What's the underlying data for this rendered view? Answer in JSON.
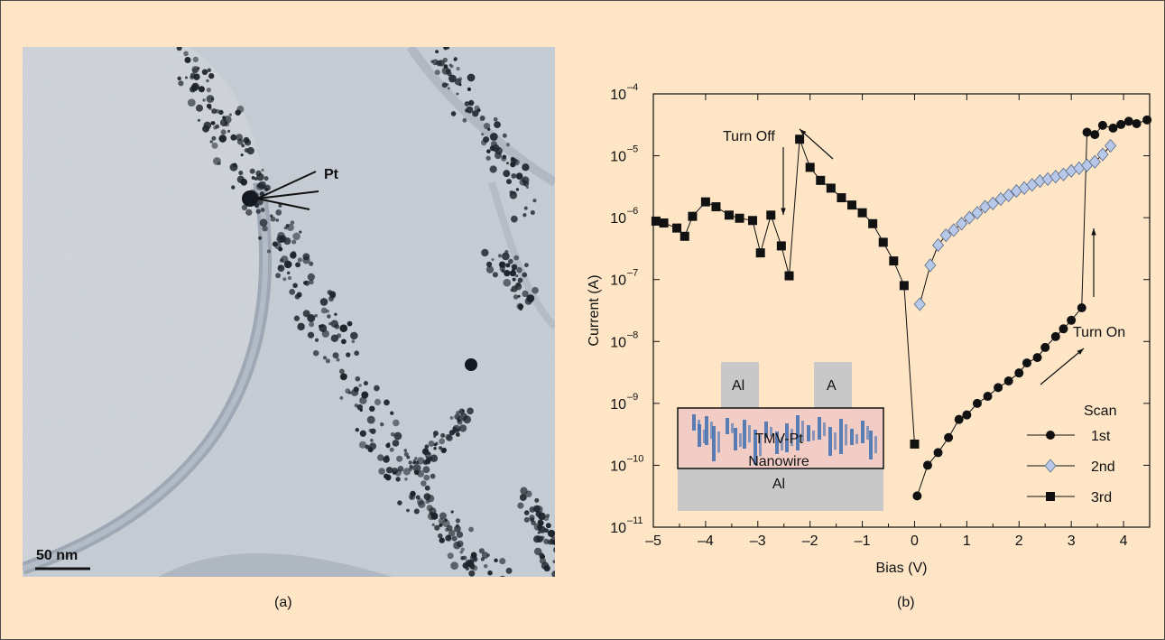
{
  "panel_a": {
    "caption": "(a)",
    "particle_label": "Pt",
    "scale_bar_label": "50 nm"
  },
  "panel_b": {
    "caption": "(b)"
  },
  "colors": {
    "figure_background": "#fde5c6",
    "diamond_fill": "#b7c8e8",
    "marker_dark": "#111111",
    "inset_gray": "#c8c8c8",
    "inset_pink": "#f2cdc6",
    "inset_blue": "#3d6fb0"
  },
  "chart_data": {
    "type": "scatter",
    "xlabel": "Bias (V)",
    "ylabel": "Current (A)",
    "xlim": [
      -5,
      4.5
    ],
    "ylim": [
      1e-11,
      0.0001
    ],
    "yscale": "log",
    "x_ticks": [
      -5,
      -4,
      -3,
      -2,
      -1,
      0,
      1,
      2,
      3,
      4
    ],
    "x_tick_labels": [
      "–5",
      "–4",
      "–3",
      "–2",
      "–1",
      "0",
      "1",
      "2",
      "3",
      "4"
    ],
    "y_tick_exponents": [
      -11,
      -10,
      -9,
      -8,
      -7,
      -6,
      -5,
      -4
    ],
    "y_tick_base": "10",
    "legend_title": "Scan",
    "legend_position": "bottom-right",
    "series": [
      {
        "name": "1st",
        "marker": "circle",
        "points": [
          [
            0.05,
            3.2e-11
          ],
          [
            0.25,
            1e-10
          ],
          [
            0.45,
            1.6e-10
          ],
          [
            0.65,
            2.8e-10
          ],
          [
            0.85,
            5.5e-10
          ],
          [
            1.0,
            6.5e-10
          ],
          [
            1.2,
            1e-09
          ],
          [
            1.4,
            1.3e-09
          ],
          [
            1.6,
            1.8e-09
          ],
          [
            1.8,
            2.3e-09
          ],
          [
            2.0,
            3.1e-09
          ],
          [
            2.15,
            4.5e-09
          ],
          [
            2.35,
            5.5e-09
          ],
          [
            2.5,
            8e-09
          ],
          [
            2.7,
            1.2e-08
          ],
          [
            2.85,
            1.6e-08
          ],
          [
            3.0,
            2.2e-08
          ],
          [
            3.2,
            3.5e-08
          ],
          [
            3.3,
            2.4e-05
          ],
          [
            3.45,
            2.2e-05
          ],
          [
            3.6,
            3.1e-05
          ],
          [
            3.8,
            2.8e-05
          ],
          [
            3.95,
            3.2e-05
          ],
          [
            4.1,
            3.6e-05
          ],
          [
            4.25,
            3.3e-05
          ],
          [
            4.45,
            3.8e-05
          ]
        ]
      },
      {
        "name": "2nd",
        "marker": "diamond",
        "points": [
          [
            0.1,
            4e-08
          ],
          [
            0.3,
            1.7e-07
          ],
          [
            0.45,
            3.6e-07
          ],
          [
            0.6,
            5.2e-07
          ],
          [
            0.75,
            6.3e-07
          ],
          [
            0.9,
            8e-07
          ],
          [
            1.05,
            1e-06
          ],
          [
            1.2,
            1.2e-06
          ],
          [
            1.35,
            1.5e-06
          ],
          [
            1.5,
            1.7e-06
          ],
          [
            1.65,
            2e-06
          ],
          [
            1.8,
            2.3e-06
          ],
          [
            1.95,
            2.7e-06
          ],
          [
            2.1,
            3e-06
          ],
          [
            2.25,
            3.4e-06
          ],
          [
            2.4,
            3.9e-06
          ],
          [
            2.55,
            4.2e-06
          ],
          [
            2.7,
            4.6e-06
          ],
          [
            2.85,
            5e-06
          ],
          [
            3.0,
            5.7e-06
          ],
          [
            3.15,
            6.3e-06
          ],
          [
            3.3,
            7e-06
          ],
          [
            3.45,
            8e-06
          ],
          [
            3.6,
            1.05e-05
          ],
          [
            3.75,
            1.45e-05
          ]
        ]
      },
      {
        "name": "3rd",
        "marker": "square",
        "points": [
          [
            -4.95,
            8.8e-07
          ],
          [
            -4.8,
            8.2e-07
          ],
          [
            -4.55,
            6.8e-07
          ],
          [
            -4.4,
            5e-07
          ],
          [
            -4.25,
            1.05e-06
          ],
          [
            -4.0,
            1.8e-06
          ],
          [
            -3.8,
            1.5e-06
          ],
          [
            -3.55,
            1.1e-06
          ],
          [
            -3.35,
            9.8e-07
          ],
          [
            -3.1,
            9e-07
          ],
          [
            -2.95,
            2.7e-07
          ],
          [
            -2.75,
            1.1e-06
          ],
          [
            -2.55,
            3.5e-07
          ],
          [
            -2.4,
            1.15e-07
          ],
          [
            -2.2,
            1.85e-05
          ],
          [
            -2.0,
            6.5e-06
          ],
          [
            -1.8,
            4e-06
          ],
          [
            -1.6,
            3e-06
          ],
          [
            -1.4,
            2.1e-06
          ],
          [
            -1.2,
            1.6e-06
          ],
          [
            -1.0,
            1.2e-06
          ],
          [
            -0.8,
            8e-07
          ],
          [
            -0.6,
            4e-07
          ],
          [
            -0.4,
            2e-07
          ],
          [
            -0.2,
            8e-08
          ],
          [
            0.0,
            2.2e-10
          ]
        ]
      }
    ],
    "annotations": [
      {
        "text": "Turn Off",
        "x": -2.05,
        "y": 1.9e-05
      },
      {
        "text": "Turn On",
        "x": 3.65,
        "y": 1.6e-08
      }
    ],
    "inset": {
      "top_electrode_left": "Al",
      "top_electrode_right": "A",
      "nanowire_label_line1": "TMV-Pt",
      "nanowire_label_line2": "Nanowire",
      "substrate_label": "Al"
    }
  }
}
